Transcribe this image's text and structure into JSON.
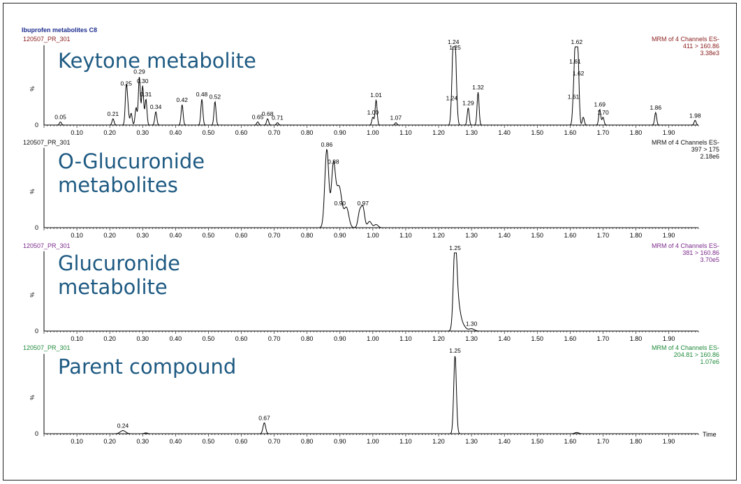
{
  "figure_title": "Ibuprofen metabolites  C8",
  "x_axis_label": "Time",
  "y_axis_label": "%",
  "colors": {
    "title": "#1f2f8f",
    "trace": "#000000",
    "annotation": "#1e5a82"
  },
  "chart_data": [
    {
      "type": "line",
      "sample": "120507_PR_301",
      "annotation": "Keytone metabolite",
      "method": [
        "MRM of 4 Channels ES-",
        "411 > 160.86",
        "3.38e3"
      ],
      "header_color": "#8a1c1c",
      "xlim": [
        0,
        1.99
      ],
      "y_zero_label": "0",
      "x_ticks": [
        0.1,
        0.2,
        0.3,
        0.4,
        0.5,
        0.6,
        0.7,
        0.8,
        0.9,
        1.0,
        1.1,
        1.2,
        1.3,
        1.4,
        1.5,
        1.6,
        1.7,
        1.8,
        1.9
      ],
      "peaks": [
        {
          "x": 0.05,
          "h": 0.04,
          "w": 0.003,
          "label": "0.05"
        },
        {
          "x": 0.21,
          "h": 0.08,
          "w": 0.003,
          "label": "0.21"
        },
        {
          "x": 0.25,
          "h": 0.47,
          "w": 0.003,
          "label": "0.25"
        },
        {
          "x": 0.255,
          "h": 0.2,
          "w": 0.003
        },
        {
          "x": 0.265,
          "h": 0.15,
          "w": 0.003
        },
        {
          "x": 0.28,
          "h": 0.22,
          "w": 0.003
        },
        {
          "x": 0.29,
          "h": 0.62,
          "w": 0.003,
          "label": "0.29"
        },
        {
          "x": 0.3,
          "h": 0.5,
          "w": 0.003,
          "label": "0.30"
        },
        {
          "x": 0.31,
          "h": 0.33,
          "w": 0.003,
          "label": "0.31"
        },
        {
          "x": 0.34,
          "h": 0.17,
          "w": 0.003,
          "label": "0.34"
        },
        {
          "x": 0.42,
          "h": 0.26,
          "w": 0.003,
          "label": "0.42"
        },
        {
          "x": 0.48,
          "h": 0.33,
          "w": 0.003,
          "label": "0.48"
        },
        {
          "x": 0.52,
          "h": 0.3,
          "w": 0.003,
          "label": "0.52"
        },
        {
          "x": 0.65,
          "h": 0.04,
          "w": 0.003,
          "label": "0.65"
        },
        {
          "x": 0.68,
          "h": 0.08,
          "w": 0.003,
          "label": "0.68"
        },
        {
          "x": 0.71,
          "h": 0.03,
          "w": 0.003,
          "label": "0.71"
        },
        {
          "x": 1.0,
          "h": 0.1,
          "w": 0.003,
          "label": "1.00"
        },
        {
          "x": 1.01,
          "h": 0.32,
          "w": 0.003,
          "label": "1.01"
        },
        {
          "x": 1.07,
          "h": 0.03,
          "w": 0.003,
          "label": "1.07"
        },
        {
          "x": 1.24,
          "h": 0.28,
          "w": 0.003,
          "label": "1.24"
        },
        {
          "x": 1.245,
          "h": 1.0,
          "w": 0.003,
          "label": "1.24"
        },
        {
          "x": 1.25,
          "h": 0.93,
          "w": 0.003,
          "label": "1.25"
        },
        {
          "x": 1.255,
          "h": 0.25,
          "w": 0.003
        },
        {
          "x": 1.29,
          "h": 0.22,
          "w": 0.003,
          "label": "1.29"
        },
        {
          "x": 1.32,
          "h": 0.42,
          "w": 0.003,
          "label": "1.32"
        },
        {
          "x": 1.61,
          "h": 0.3,
          "w": 0.003,
          "label": "1.61"
        },
        {
          "x": 1.615,
          "h": 0.75,
          "w": 0.003,
          "label": "1.61"
        },
        {
          "x": 1.62,
          "h": 1.0,
          "w": 0.003,
          "label": "1.62"
        },
        {
          "x": 1.625,
          "h": 0.6,
          "w": 0.003,
          "label": "1.62"
        },
        {
          "x": 1.64,
          "h": 0.1,
          "w": 0.003
        },
        {
          "x": 1.69,
          "h": 0.2,
          "w": 0.003,
          "label": "1.69"
        },
        {
          "x": 1.7,
          "h": 0.1,
          "w": 0.003,
          "label": "1.70"
        },
        {
          "x": 1.86,
          "h": 0.16,
          "w": 0.003,
          "label": "1.86"
        },
        {
          "x": 1.98,
          "h": 0.06,
          "w": 0.003,
          "label": "1.98"
        }
      ]
    },
    {
      "type": "line",
      "sample": "120507_PR_301",
      "annotation": "O-Glucuronide\nmetabolites",
      "method": [
        "MRM of 4 Channels ES-",
        "397 > 175",
        "2.18e6"
      ],
      "header_color": "#111111",
      "xlim": [
        0,
        1.99
      ],
      "y_zero_label": "0",
      "x_ticks": [
        0.1,
        0.2,
        0.3,
        0.4,
        0.5,
        0.6,
        0.7,
        0.8,
        0.9,
        1.0,
        1.1,
        1.2,
        1.3,
        1.4,
        1.5,
        1.6,
        1.7,
        1.8,
        1.9
      ],
      "peaks": [
        {
          "x": 0.86,
          "h": 1.0,
          "w": 0.006,
          "label": "0.86"
        },
        {
          "x": 0.88,
          "h": 0.78,
          "w": 0.006,
          "label": "0.88"
        },
        {
          "x": 0.895,
          "h": 0.3,
          "w": 0.008
        },
        {
          "x": 0.9,
          "h": 0.25,
          "w": 0.008,
          "label": "0.90"
        },
        {
          "x": 0.92,
          "h": 0.25,
          "w": 0.007
        },
        {
          "x": 0.96,
          "h": 0.2,
          "w": 0.005
        },
        {
          "x": 0.97,
          "h": 0.25,
          "w": 0.005,
          "label": "0.97"
        },
        {
          "x": 0.99,
          "h": 0.08,
          "w": 0.006
        },
        {
          "x": 1.01,
          "h": 0.04,
          "w": 0.006
        }
      ]
    },
    {
      "type": "line",
      "sample": "120507_PR_301",
      "annotation": "Glucuronide\nmetabolite",
      "method": [
        "MRM of 4 Channels ES-",
        "381 > 160.86",
        "3.70e5"
      ],
      "header_color": "#7a2a8a",
      "xlim": [
        0,
        1.99
      ],
      "y_zero_label": "0",
      "x_ticks": [
        0.1,
        0.2,
        0.3,
        0.4,
        0.5,
        0.6,
        0.7,
        0.8,
        0.9,
        1.0,
        1.1,
        1.2,
        1.3,
        1.4,
        1.5,
        1.6,
        1.7,
        1.8,
        1.9
      ],
      "peaks": [
        {
          "x": 1.25,
          "h": 1.0,
          "w": 0.005,
          "label": "1.25"
        },
        {
          "x": 1.258,
          "h": 0.35,
          "w": 0.008
        },
        {
          "x": 1.275,
          "h": 0.06,
          "w": 0.008
        },
        {
          "x": 1.3,
          "h": 0.03,
          "w": 0.008,
          "label": "1.30"
        }
      ]
    },
    {
      "type": "line",
      "sample": "120507_PR_301",
      "annotation": "Parent compound",
      "method": [
        "MRM of 4 Channels ES-",
        "204.81 > 160.86",
        "1.07e6"
      ],
      "header_color": "#1f8a3a",
      "xlim": [
        0,
        1.99
      ],
      "y_zero_label": "0",
      "x_ticks": [
        0.1,
        0.2,
        0.3,
        0.4,
        0.5,
        0.6,
        0.7,
        0.8,
        0.9,
        1.0,
        1.1,
        1.2,
        1.3,
        1.4,
        1.5,
        1.6,
        1.7,
        1.8,
        1.9
      ],
      "peaks": [
        {
          "x": 0.24,
          "h": 0.04,
          "w": 0.008,
          "label": "0.24"
        },
        {
          "x": 0.31,
          "h": 0.01,
          "w": 0.005
        },
        {
          "x": 0.67,
          "h": 0.14,
          "w": 0.004,
          "label": "0.67"
        },
        {
          "x": 1.25,
          "h": 1.0,
          "w": 0.004,
          "label": "1.25"
        },
        {
          "x": 1.62,
          "h": 0.015,
          "w": 0.006
        }
      ]
    }
  ]
}
